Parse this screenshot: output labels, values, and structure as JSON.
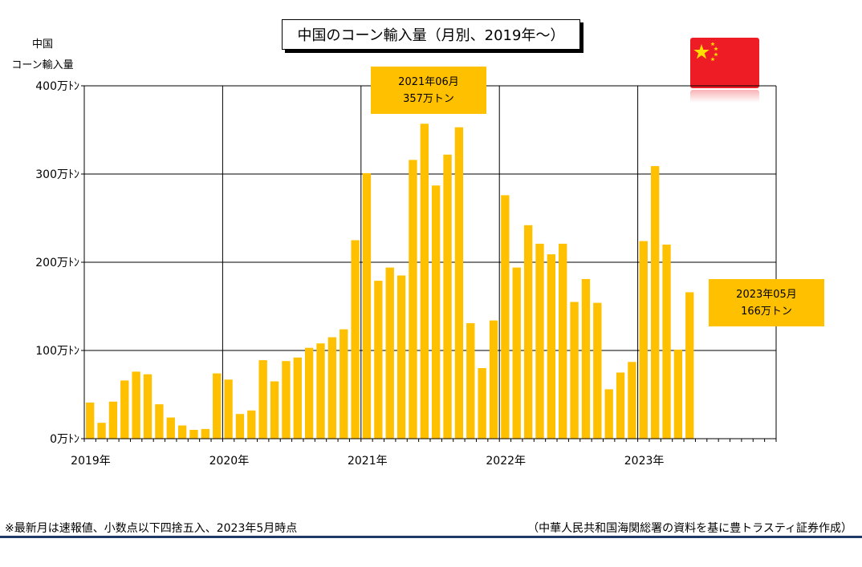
{
  "chart_data": {
    "type": "bar",
    "title": "中国のコーン輸入量（月別、2019年～）",
    "ylabel_line1": "中国",
    "ylabel_line2": "コーン輸入量",
    "unit": "万トン",
    "ylim": [
      0,
      400
    ],
    "ytick_labels": [
      "0万ﾄﾝ",
      "100万ﾄﾝ",
      "200万ﾄﾝ",
      "300万ﾄﾝ",
      "400万ﾄﾝ"
    ],
    "xtick_labels": [
      "2019年",
      "2020年",
      "2021年",
      "2022年",
      "2023年"
    ],
    "months": [
      "2019-01",
      "2019-02",
      "2019-03",
      "2019-04",
      "2019-05",
      "2019-06",
      "2019-07",
      "2019-08",
      "2019-09",
      "2019-10",
      "2019-11",
      "2019-12",
      "2020-01",
      "2020-02",
      "2020-03",
      "2020-04",
      "2020-05",
      "2020-06",
      "2020-07",
      "2020-08",
      "2020-09",
      "2020-10",
      "2020-11",
      "2020-12",
      "2021-01",
      "2021-02",
      "2021-03",
      "2021-04",
      "2021-05",
      "2021-06",
      "2021-07",
      "2021-08",
      "2021-09",
      "2021-10",
      "2021-11",
      "2021-12",
      "2022-01",
      "2022-02",
      "2022-03",
      "2022-04",
      "2022-05",
      "2022-06",
      "2022-07",
      "2022-08",
      "2022-09",
      "2022-10",
      "2022-11",
      "2022-12",
      "2023-01",
      "2023-02",
      "2023-03",
      "2023-04",
      "2023-05"
    ],
    "values": [
      41,
      18,
      42,
      66,
      76,
      73,
      39,
      24,
      15,
      10,
      11,
      74,
      67,
      28,
      32,
      89,
      65,
      88,
      92,
      103,
      108,
      115,
      124,
      225,
      301,
      179,
      194,
      185,
      316,
      357,
      287,
      322,
      353,
      131,
      80,
      134,
      276,
      194,
      242,
      221,
      209,
      221,
      155,
      181,
      154,
      56,
      75,
      87,
      224,
      309,
      220,
      101,
      166
    ],
    "grid": true,
    "bar_color": "#ffc000",
    "annotations": [
      {
        "line1": "2021年06月",
        "line2": "357万トン"
      },
      {
        "line1": "2023年05月",
        "line2": "166万トン"
      }
    ]
  },
  "footnote_left": "※最新月は速報値、小数点以下四捨五入、2023年5月時点",
  "footnote_right": "（中華人民共和国海関総署の資料を基に豊トラスティ証券作成）",
  "colors": {
    "flag_red": "#ee1c25",
    "flag_star": "#ffde00",
    "rule": "#1f3864"
  }
}
